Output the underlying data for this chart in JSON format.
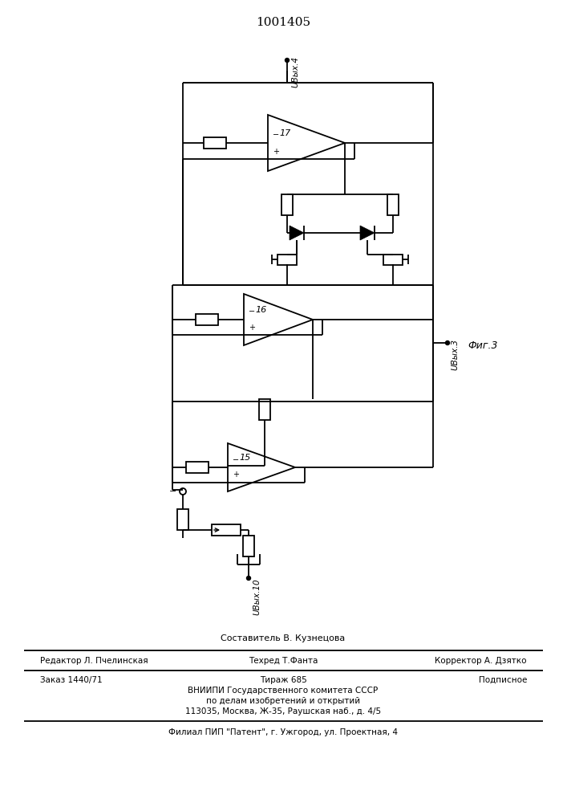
{
  "title": "1001405",
  "fig3_label": "Фиг.3",
  "label_uvyx4": "UВых.4",
  "label_uvyx3": "UВых.3",
  "label_uvyx10": "UВых.10",
  "footer_sestavitel": "Составитель В. Кузнецова",
  "footer_line1_left": "Редактор Л. Пчелинская",
  "footer_line1_center": "Техред Т.Фанта",
  "footer_line1_right": "Корректор А. Дзятко",
  "footer_line2_left": "Заказ 1440/71",
  "footer_line2_center": "Тираж 685",
  "footer_line2_right": "Подписное",
  "footer_line3": "ВНИИПИ Государственного комитета СССР",
  "footer_line4": "по делам изобретений и открытий",
  "footer_line5": "113035, Москва, Ж-35, Раушская наб., д. 4/5",
  "footer_line6": "Филиал ПИП \"Патент\", г. Ужгород, ул. Проектная, 4",
  "bg_color": "#ffffff"
}
